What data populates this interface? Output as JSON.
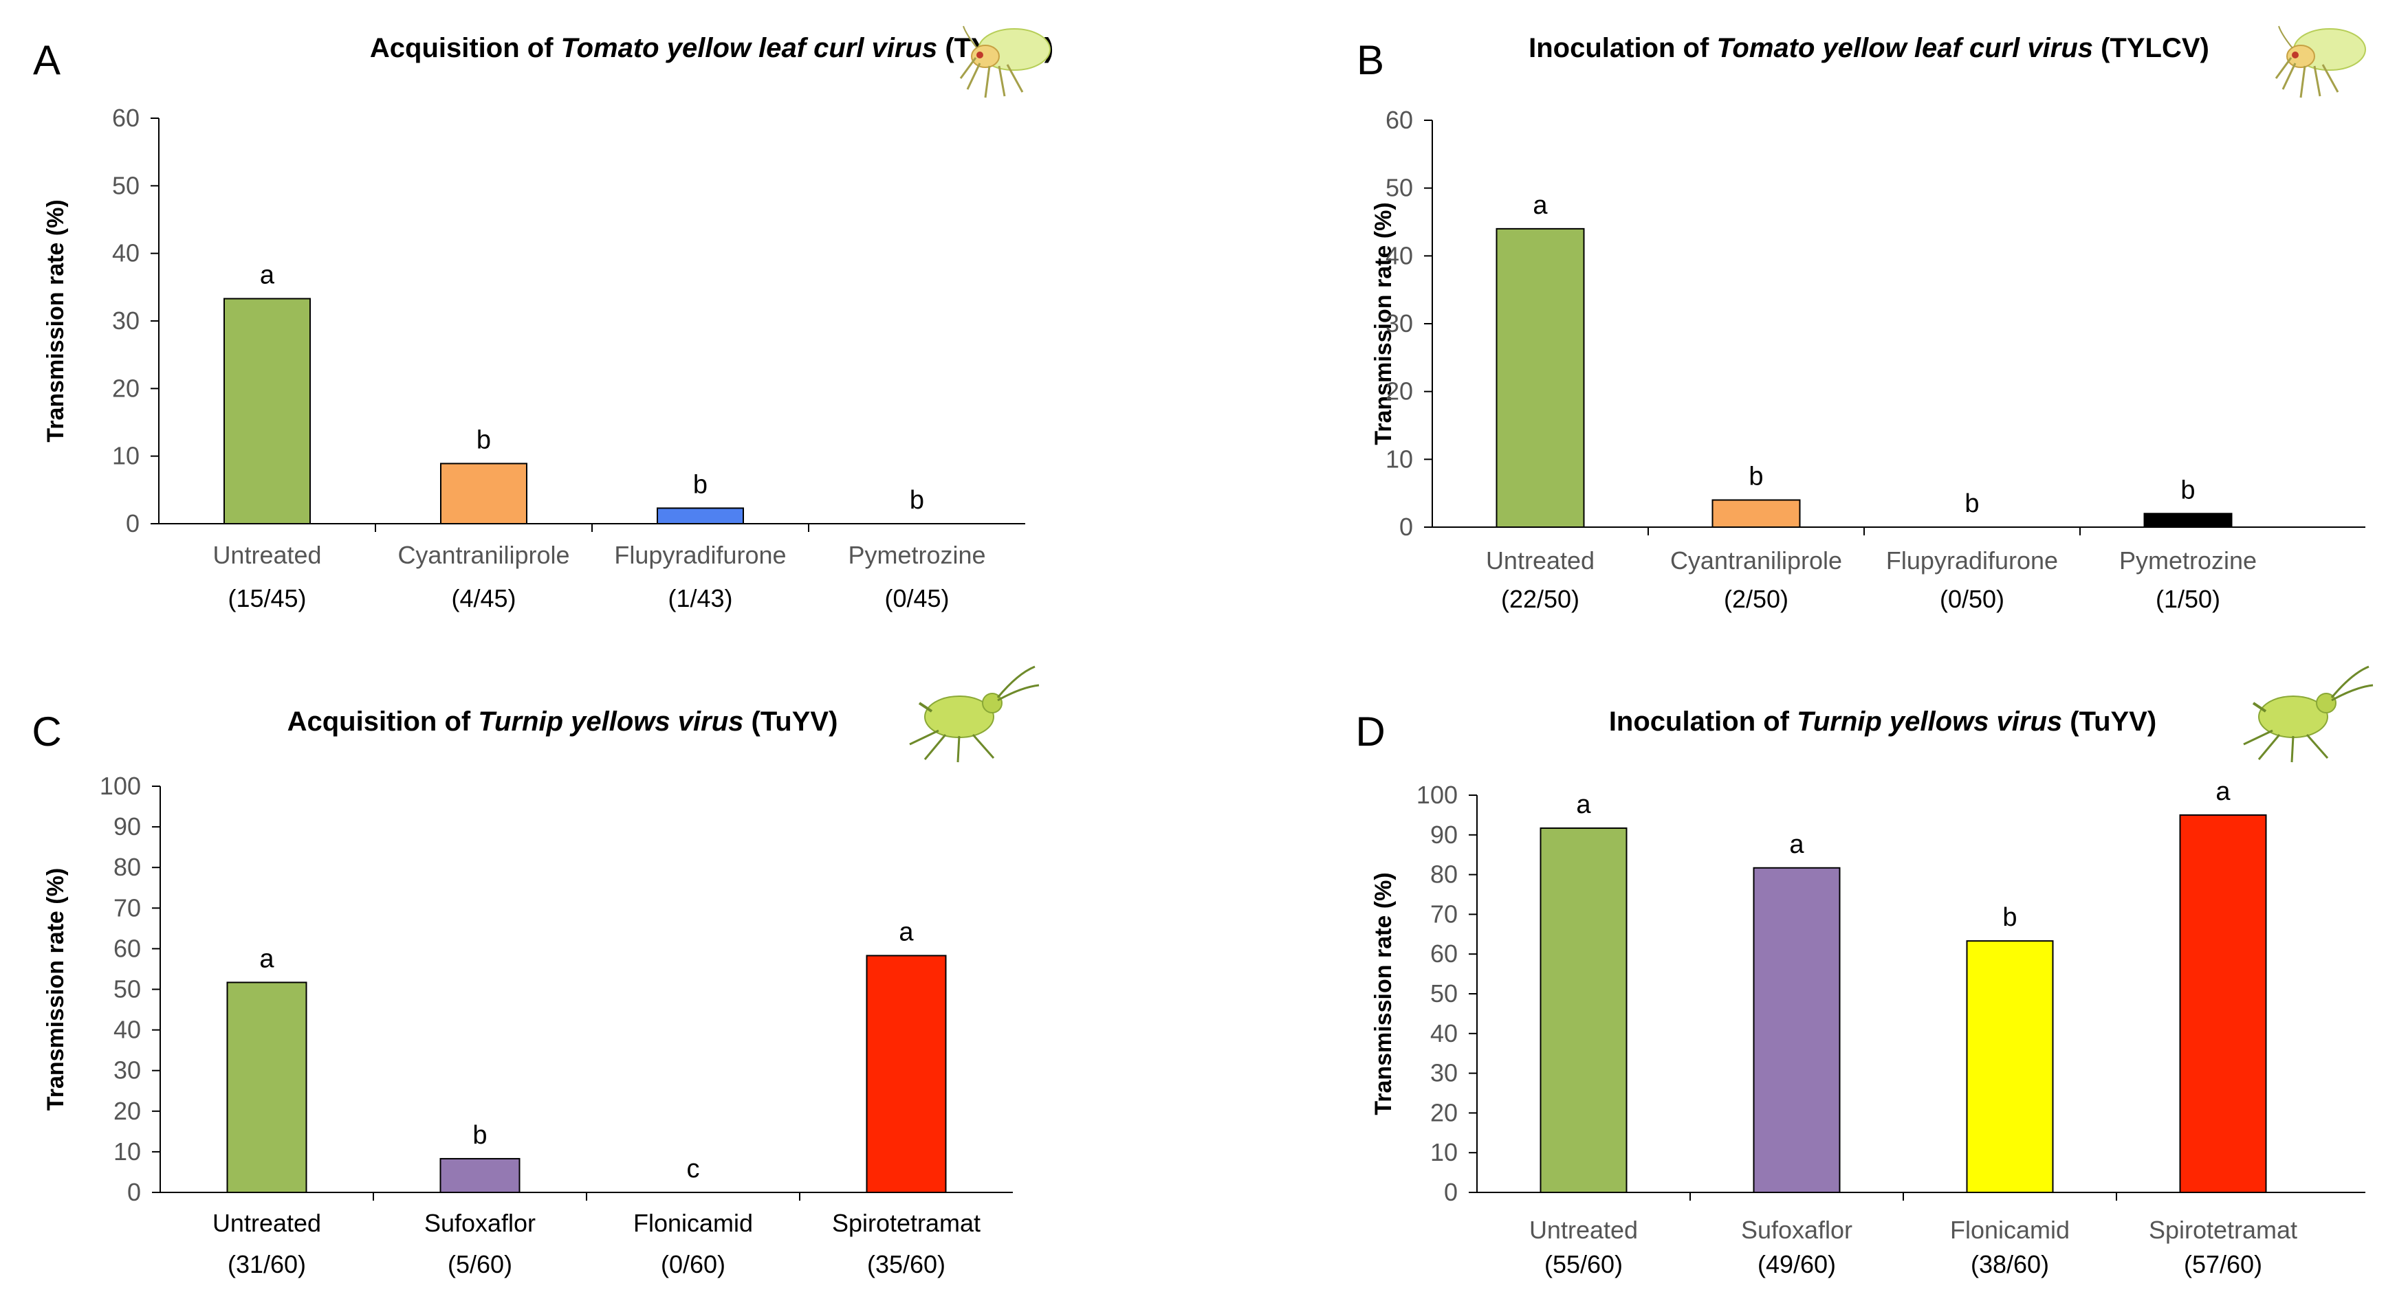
{
  "chart_data": [
    {
      "panel": "A",
      "type": "bar",
      "title": {
        "prefix": "Acquisition of ",
        "italic": "Tomato yellow leaf curl virus",
        "suffix": " (TYLCV)"
      },
      "ylabel": "Transmission rate (%)",
      "ylim": [
        0,
        60
      ],
      "yticks": [
        0,
        10,
        20,
        30,
        40,
        50,
        60
      ],
      "categories": [
        "Untreated",
        "Cyantraniliprole",
        "Flupyradifurone",
        "Pymetrozine"
      ],
      "counts": [
        "(15/45)",
        "(4/45)",
        "(1/43)",
        "(0/45)"
      ],
      "values": [
        33.3,
        8.9,
        2.3,
        0
      ],
      "letters": [
        "a",
        "b",
        "b",
        "b"
      ],
      "colors": [
        "#9bbb59",
        "#f9a65a",
        "#4f81f1",
        "#000000"
      ],
      "insect_icon": "whitefly-icon"
    },
    {
      "panel": "B",
      "type": "bar",
      "title": {
        "prefix": "Inoculation of ",
        "italic": "Tomato yellow leaf curl virus",
        "suffix": " (TYLCV)"
      },
      "ylabel": "Transmission rate (%)",
      "ylim": [
        0,
        60
      ],
      "yticks": [
        0,
        10,
        20,
        30,
        40,
        50,
        60
      ],
      "categories": [
        "Untreated",
        "Cyantraniliprole",
        "Flupyradifurone",
        "Pymetrozine"
      ],
      "counts": [
        "(22/50)",
        "(2/50)",
        "(0/50)",
        "(1/50)"
      ],
      "values": [
        44,
        4,
        0,
        2
      ],
      "letters": [
        "a",
        "b",
        "b",
        "b"
      ],
      "colors": [
        "#9bbb59",
        "#f9a65a",
        "#4f81f1",
        "#000000"
      ],
      "insect_icon": "whitefly-icon"
    },
    {
      "panel": "C",
      "type": "bar",
      "title": {
        "prefix": "Acquisition of ",
        "italic": "Turnip yellows virus",
        "suffix": " (TuYV)"
      },
      "ylabel": "Transmission rate (%)",
      "ylim": [
        0,
        100
      ],
      "yticks": [
        0,
        10,
        20,
        30,
        40,
        50,
        60,
        70,
        80,
        90,
        100
      ],
      "categories": [
        "Untreated",
        "Sufoxaflor",
        "Flonicamid",
        "Spirotetramat"
      ],
      "counts": [
        "(31/60)",
        "(5/60)",
        "(0/60)",
        "(35/60)"
      ],
      "values": [
        51.7,
        8.3,
        0,
        58.3
      ],
      "letters": [
        "a",
        "b",
        "c",
        "a"
      ],
      "colors": [
        "#9bbb59",
        "#9479b2",
        "#ffff00",
        "#ff2600"
      ],
      "insect_icon": "aphid-icon"
    },
    {
      "panel": "D",
      "type": "bar",
      "title": {
        "prefix": "Inoculation of ",
        "italic": "Turnip yellows virus",
        "suffix": " (TuYV)"
      },
      "ylabel": "Transmission rate (%)",
      "ylim": [
        0,
        100
      ],
      "yticks": [
        0,
        10,
        20,
        30,
        40,
        50,
        60,
        70,
        80,
        90,
        100
      ],
      "categories": [
        "Untreated",
        "Sufoxaflor",
        "Flonicamid",
        "Spirotetramat"
      ],
      "counts": [
        "(55/60)",
        "(49/60)",
        "(38/60)",
        "(57/60)"
      ],
      "values": [
        91.7,
        81.7,
        63.3,
        95
      ],
      "letters": [
        "a",
        "a",
        "b",
        "a"
      ],
      "colors": [
        "#9bbb59",
        "#9479b2",
        "#ffff00",
        "#ff2600"
      ],
      "insect_icon": "aphid-icon"
    }
  ]
}
